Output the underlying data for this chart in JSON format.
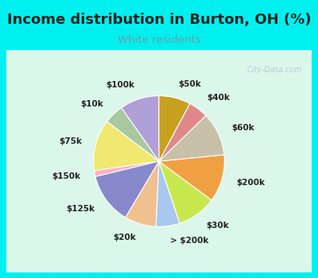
{
  "title": "Income distribution in Burton, OH (%)",
  "subtitle": "White residents",
  "title_fontsize": 13,
  "subtitle_fontsize": 9.5,
  "title_color": "#222222",
  "subtitle_color": "#779999",
  "bg_cyan": "#00f0f0",
  "bg_chart": "#e0f5ee",
  "watermark": "City-Data.com",
  "labels": [
    "$100k",
    "$10k",
    "$75k",
    "$150k",
    "$125k",
    "$20k",
    "> $200k",
    "$30k",
    "$200k",
    "$60k",
    "$40k",
    "$50k"
  ],
  "values": [
    10,
    5,
    13,
    1.5,
    13,
    8,
    6,
    10,
    12,
    11,
    5,
    8
  ],
  "colors": [
    "#b0a0d8",
    "#a8c8a0",
    "#f0e870",
    "#ffb0c0",
    "#8888cc",
    "#f0c090",
    "#a8c8f0",
    "#c8e850",
    "#f0a040",
    "#c8c0a8",
    "#e08888",
    "#c8a020"
  ],
  "startangle": 90,
  "wedge_linewidth": 0.8,
  "wedge_edgecolor": "#ffffff",
  "label_fontsize": 7.5
}
